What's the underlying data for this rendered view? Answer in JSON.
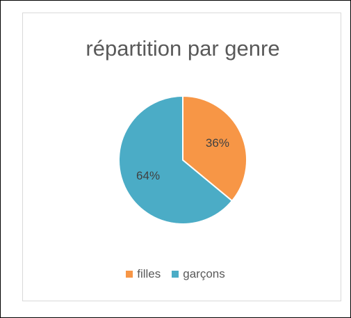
{
  "chart_data": {
    "type": "pie",
    "title": "répartition par genre",
    "categories": [
      "filles",
      "garçons"
    ],
    "values": [
      36,
      64
    ],
    "value_labels": [
      "36%",
      "64%"
    ],
    "colors": [
      "#f79646",
      "#4bacc6"
    ],
    "legend": "bottom"
  }
}
